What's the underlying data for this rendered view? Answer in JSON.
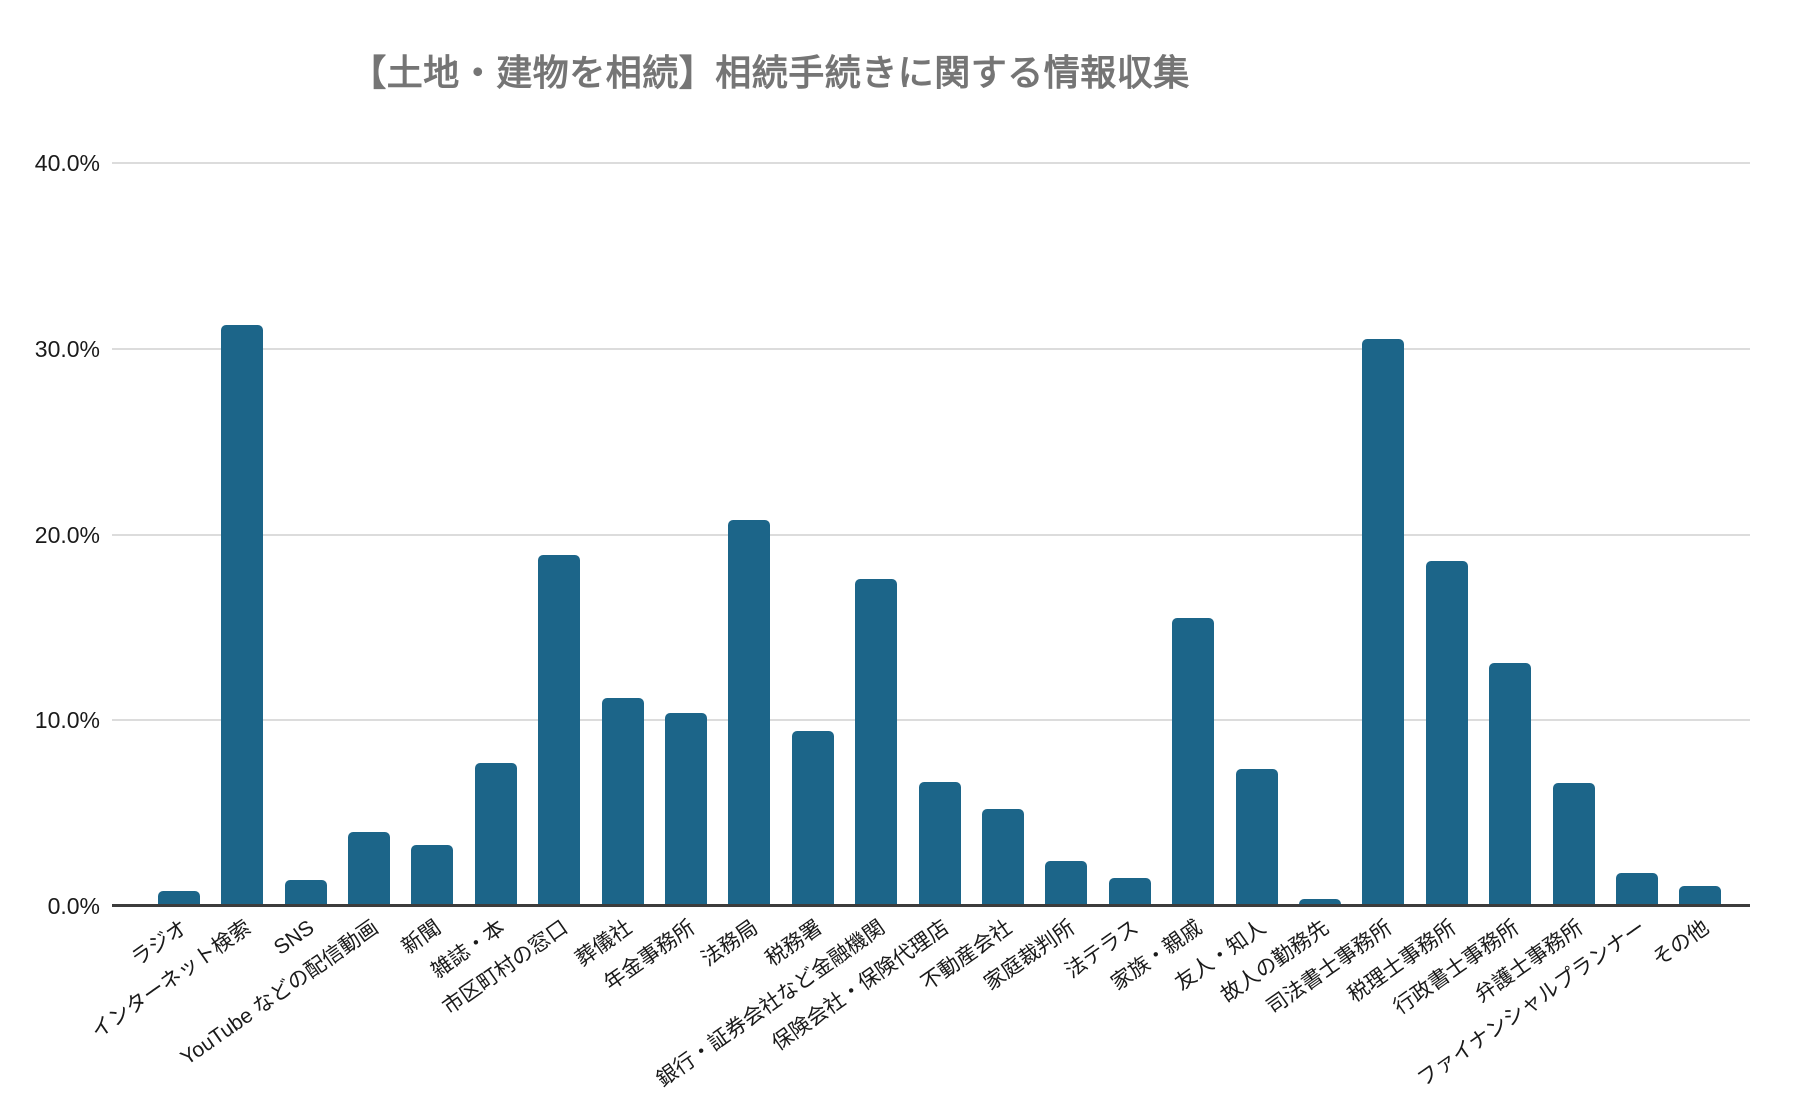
{
  "title": "【土地・建物を相続】相続手続きに関する情報収集",
  "colors": {
    "bar": "#1c6589",
    "title": "#757575",
    "gridline": "#dcdcdc",
    "baseline": "#3c3c3c",
    "axis_label": "#1a1a1a",
    "background": "#ffffff"
  },
  "chart_data": {
    "type": "bar",
    "title": "【土地・建物を相続】相続手続きに関する情報収集",
    "categories": [
      "ラジオ",
      "インターネット検索",
      "SNS",
      "YouTube などの配信動画",
      "新聞",
      "雑誌・本",
      "市区町村の窓口",
      "葬儀社",
      "年金事務所",
      "法務局",
      "税務署",
      "銀行・証券会社など金融機関",
      "保険会社・保険代理店",
      "不動産会社",
      "家庭裁判所",
      "法テラス",
      "家族・親戚",
      "友人・知人",
      "故人の勤務先",
      "司法書士事務所",
      "税理士事務所",
      "行政書士事務所",
      "弁護士事務所",
      "ファイナンシャルプランナー",
      "その他"
    ],
    "values": [
      0.8,
      31.3,
      1.4,
      4.0,
      3.3,
      7.7,
      18.9,
      11.2,
      10.4,
      20.8,
      9.4,
      17.6,
      6.7,
      5.2,
      2.4,
      1.5,
      15.5,
      7.4,
      0.4,
      30.5,
      18.6,
      13.1,
      6.6,
      1.8,
      1.1
    ],
    "unit": "%",
    "xlabel": "",
    "ylabel": "",
    "ylim": [
      0,
      40
    ],
    "yticks": [
      "40.0%",
      "30.0%",
      "20.0%",
      "10.0%",
      "0.0%"
    ],
    "grid": true,
    "legend": false,
    "x_label_rotation_deg": -35
  }
}
